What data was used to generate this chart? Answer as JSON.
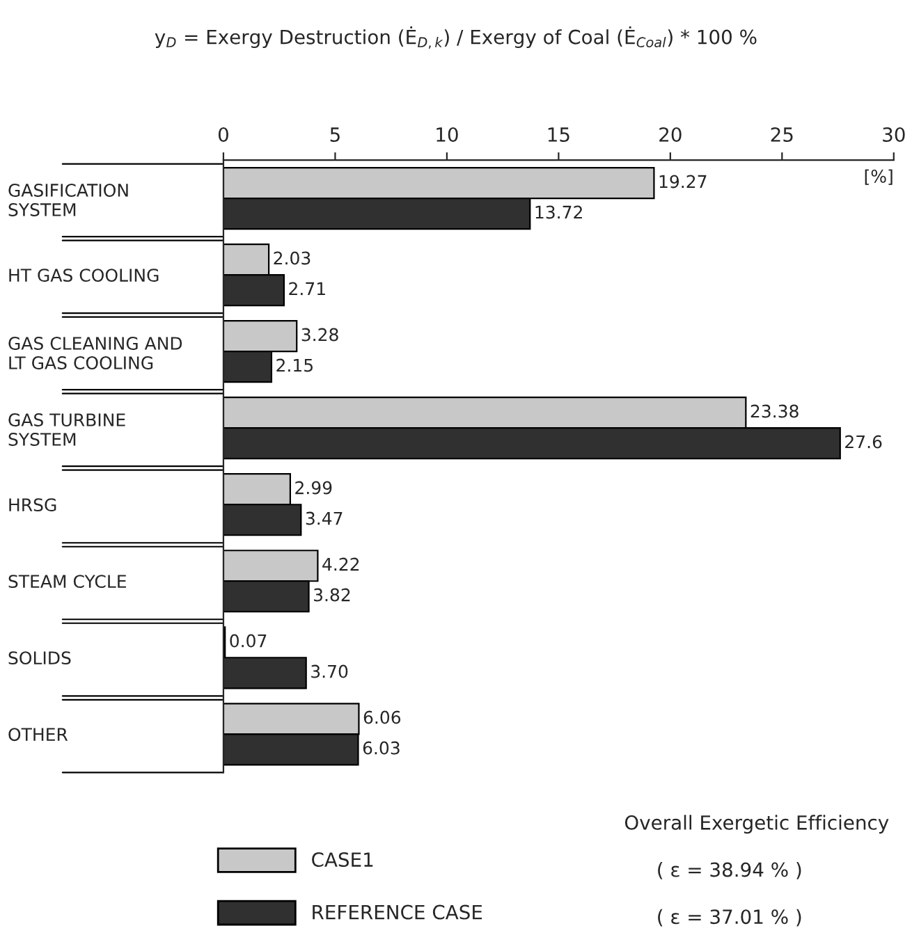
{
  "chart_data": {
    "type": "bar",
    "orientation": "horizontal",
    "title": "y$_{D}$ = Exergy Destruction (Ė$_{D,k}$) / Exergy of Coal (Ė$_{Coal}$) * 100 %",
    "xlabel": "[%]",
    "categories": [
      "GASIFICATION\nSYSTEM",
      "HT GAS COOLING",
      "GAS CLEANING AND\nLT GAS COOLING",
      "GAS TURBINE\nSYSTEM",
      "HRSG",
      "STEAM CYCLE",
      "SOLIDS",
      "OTHER"
    ],
    "series": [
      {
        "name": "CASE1",
        "color": "#c8c8c8",
        "values": [
          19.27,
          2.03,
          3.28,
          23.38,
          2.99,
          4.22,
          0.07,
          6.06
        ],
        "value_labels": [
          "19.27",
          "2.03",
          "3.28",
          "23.38",
          "2.99",
          "4.22",
          "0.07",
          "6.06"
        ]
      },
      {
        "name": "REFERENCE CASE",
        "color": "#303030",
        "values": [
          13.72,
          2.71,
          2.15,
          27.6,
          3.47,
          3.82,
          3.7,
          6.03
        ],
        "value_labels": [
          "13.72",
          "2.71",
          "2.15",
          "27.6",
          "3.47",
          "3.82",
          "3.70",
          "6.03"
        ]
      }
    ],
    "xlim": [
      0,
      30
    ],
    "xticks": [
      0,
      5,
      10,
      15,
      20,
      25,
      30
    ],
    "grid": false,
    "legend": "bottom left",
    "annotations": [
      "Overall Exergetic Efficiency",
      "( ε = 38.94 % )",
      "( ε = 37.01 % )"
    ]
  }
}
